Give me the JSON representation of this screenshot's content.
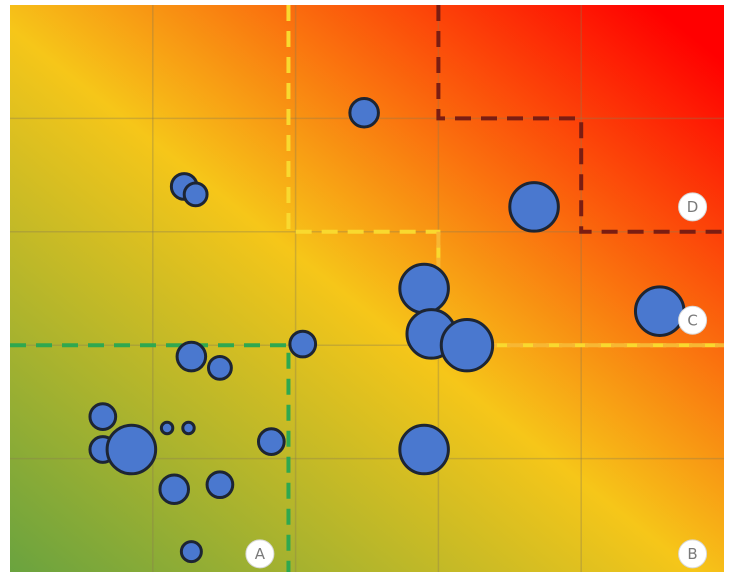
{
  "chart_data": {
    "type": "scatter",
    "title": "",
    "xlabel": "",
    "ylabel": "",
    "xlim": [
      0,
      5
    ],
    "ylim": [
      0,
      5
    ],
    "grid": true,
    "legend": "none",
    "colors": {
      "low": "#6aa33f",
      "mid": "#f6c619",
      "high": "#ff0000",
      "point_fill": "#4a78cf",
      "point_stroke": "#1d2533",
      "zone_a": "#2fa84f",
      "zone_b": "#f9d92f",
      "zone_c": "#f7b733",
      "zone_d": "#7a1d12"
    },
    "zones": [
      {
        "label": "A",
        "boundary": [
          [
            0,
            2.0
          ],
          [
            1.95,
            2.0
          ],
          [
            1.95,
            0
          ]
        ],
        "color_key": "zone_a"
      },
      {
        "label": "B",
        "boundary": [
          [
            1.95,
            5
          ],
          [
            1.95,
            3.0
          ],
          [
            3.0,
            3.0
          ],
          [
            3.0,
            2.0
          ],
          [
            5,
            2.0
          ]
        ],
        "color_key": "zone_b"
      },
      {
        "label": "C",
        "boundary": [
          [
            3.0,
            3.0
          ],
          [
            3.0,
            2.0
          ],
          [
            5,
            2.0
          ]
        ],
        "color_key": "zone_c"
      },
      {
        "label": "D",
        "boundary": [
          [
            3.0,
            5
          ],
          [
            3.0,
            4.0
          ],
          [
            4.0,
            4.0
          ],
          [
            4.0,
            3.0
          ],
          [
            5,
            3.0
          ]
        ],
        "color_key": "zone_d"
      }
    ],
    "zone_label_positions": [
      {
        "label": "A",
        "x": 1.75,
        "y": 0.16
      },
      {
        "label": "B",
        "x": 4.78,
        "y": 0.16
      },
      {
        "label": "C",
        "x": 4.78,
        "y": 2.22
      },
      {
        "label": "D",
        "x": 4.78,
        "y": 3.22
      }
    ],
    "points": [
      {
        "x": 2.48,
        "y": 4.05,
        "size": 0.1
      },
      {
        "x": 1.22,
        "y": 3.4,
        "size": 0.09
      },
      {
        "x": 1.3,
        "y": 3.33,
        "size": 0.08
      },
      {
        "x": 3.67,
        "y": 3.22,
        "size": 0.17
      },
      {
        "x": 4.55,
        "y": 2.3,
        "size": 0.17
      },
      {
        "x": 2.9,
        "y": 2.5,
        "size": 0.17
      },
      {
        "x": 2.95,
        "y": 2.1,
        "size": 0.17
      },
      {
        "x": 3.2,
        "y": 2.0,
        "size": 0.18
      },
      {
        "x": 2.05,
        "y": 2.01,
        "size": 0.09
      },
      {
        "x": 1.27,
        "y": 1.9,
        "size": 0.1
      },
      {
        "x": 1.47,
        "y": 1.8,
        "size": 0.08
      },
      {
        "x": 0.65,
        "y": 1.37,
        "size": 0.09
      },
      {
        "x": 1.1,
        "y": 1.27,
        "size": 0.04
      },
      {
        "x": 1.25,
        "y": 1.27,
        "size": 0.04
      },
      {
        "x": 0.65,
        "y": 1.08,
        "size": 0.09
      },
      {
        "x": 0.85,
        "y": 1.08,
        "size": 0.17
      },
      {
        "x": 1.83,
        "y": 1.15,
        "size": 0.09
      },
      {
        "x": 2.9,
        "y": 1.08,
        "size": 0.17
      },
      {
        "x": 1.15,
        "y": 0.73,
        "size": 0.1
      },
      {
        "x": 1.47,
        "y": 0.77,
        "size": 0.09
      },
      {
        "x": 1.27,
        "y": 0.18,
        "size": 0.07
      }
    ]
  }
}
